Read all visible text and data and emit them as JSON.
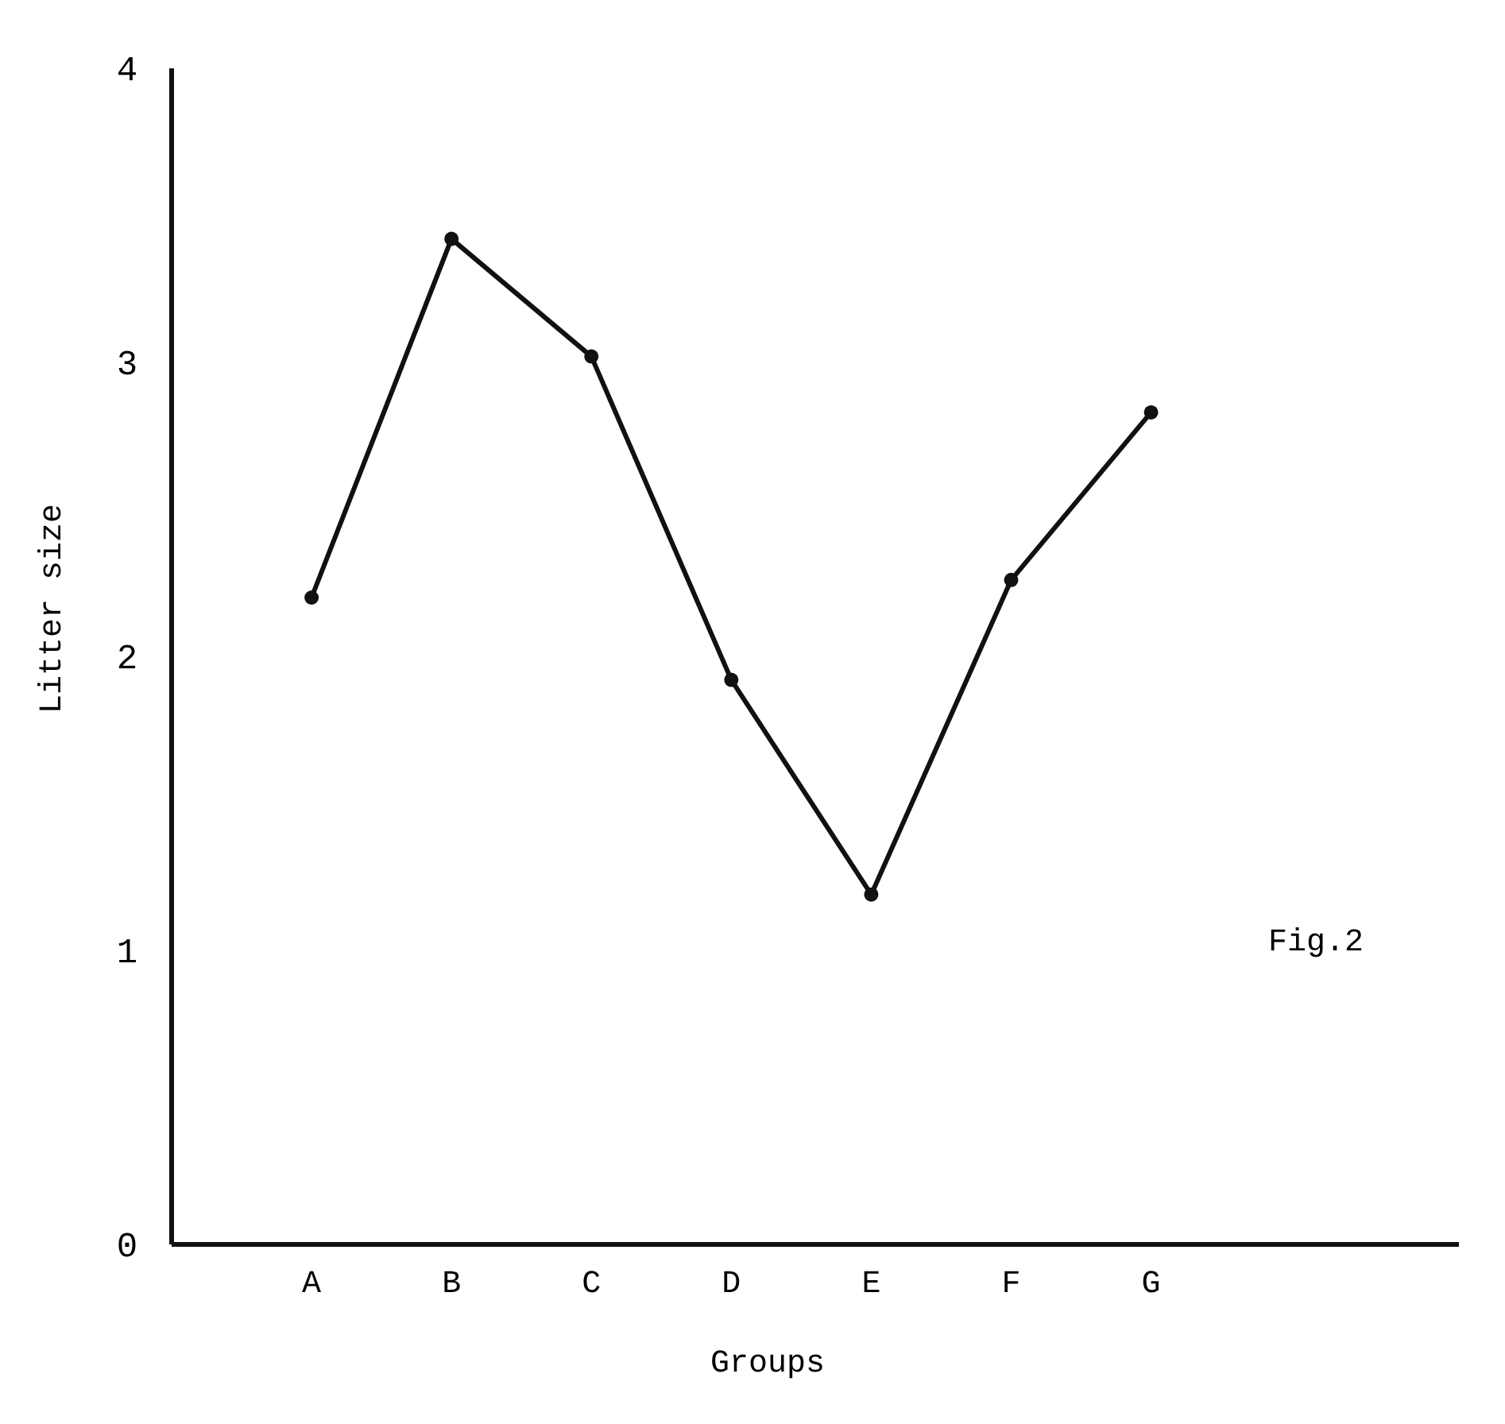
{
  "chart_data": {
    "type": "line",
    "xlabel": "Groups",
    "ylabel": "Litter size",
    "categories": [
      "A",
      "B",
      "C",
      "D",
      "E",
      "F",
      "G"
    ],
    "series": [
      {
        "color": "#111111",
        "values": [
          2.2,
          3.42,
          3.02,
          1.92,
          1.19,
          2.26,
          2.83
        ]
      }
    ],
    "ylim": [
      0,
      4
    ],
    "yticks": [
      0,
      1,
      2,
      3,
      4
    ],
    "grid": false,
    "marker": "circle",
    "line_style": "solid",
    "annotations": [
      "Fig.2"
    ]
  }
}
